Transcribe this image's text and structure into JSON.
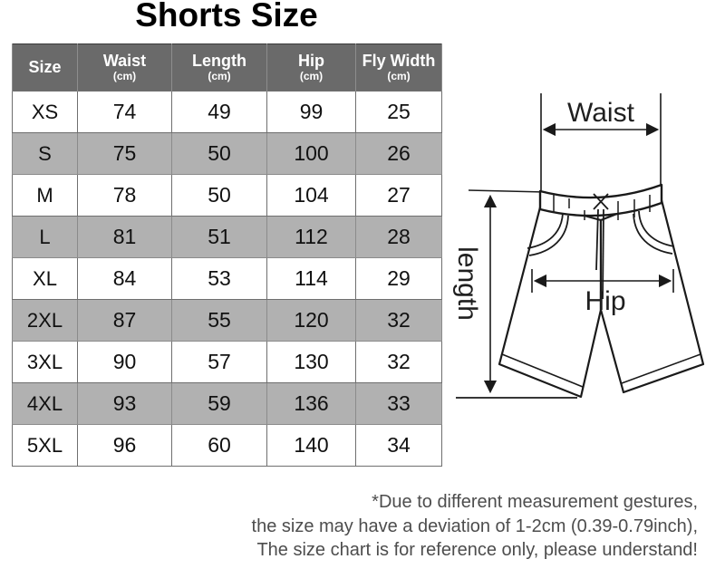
{
  "title": "Shorts Size",
  "chart_data": {
    "type": "table",
    "columns": [
      {
        "label": "Size",
        "unit": ""
      },
      {
        "label": "Waist",
        "unit": "(cm)"
      },
      {
        "label": "Length",
        "unit": "(cm)"
      },
      {
        "label": "Hip",
        "unit": "(cm)"
      },
      {
        "label": "Fly Width",
        "unit": "(cm)"
      }
    ],
    "rows": [
      [
        "XS",
        "74",
        "49",
        "99",
        "25"
      ],
      [
        "S",
        "75",
        "50",
        "100",
        "26"
      ],
      [
        "M",
        "78",
        "50",
        "104",
        "27"
      ],
      [
        "L",
        "81",
        "51",
        "112",
        "28"
      ],
      [
        "XL",
        "84",
        "53",
        "114",
        "29"
      ],
      [
        "2XL",
        "87",
        "55",
        "120",
        "32"
      ],
      [
        "3XL",
        "90",
        "57",
        "130",
        "32"
      ],
      [
        "4XL",
        "93",
        "59",
        "136",
        "33"
      ],
      [
        "5XL",
        "96",
        "60",
        "140",
        "34"
      ]
    ]
  },
  "diagram": {
    "waist_label": "Waist",
    "hip_label": "Hip",
    "length_label": "length"
  },
  "footer": {
    "line1": "*Due to different measurement gestures,",
    "line2": "the size may have a deviation of 1-2cm (0.39-0.79inch),",
    "line3": "The size chart is for reference only, please understand!"
  },
  "colors": {
    "header_bg": "#6a6a6a",
    "row_alt_bg": "#b1b1b1",
    "header_text": "#ffffff",
    "body_text": "#111111",
    "footer_text": "#4d4d4d"
  }
}
